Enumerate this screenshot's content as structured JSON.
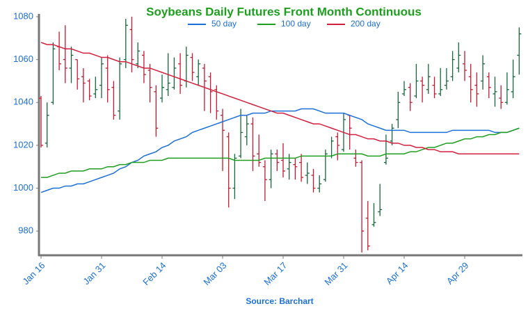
{
  "chart_data": {
    "type": "ohlc",
    "title": "Soybeans Daily Futures Front Month Continuous",
    "source": "Source: Barchart",
    "categories": [
      "Jan 16",
      null,
      null,
      null,
      null,
      null,
      null,
      null,
      null,
      null,
      "Jan 31",
      null,
      null,
      null,
      null,
      null,
      null,
      null,
      null,
      null,
      "Feb 14",
      null,
      null,
      null,
      null,
      null,
      null,
      null,
      null,
      null,
      "Mar 03",
      null,
      null,
      null,
      null,
      null,
      null,
      null,
      null,
      null,
      "Mar 17",
      null,
      null,
      null,
      null,
      null,
      null,
      null,
      null,
      null,
      "Mar 31",
      null,
      null,
      null,
      null,
      null,
      null,
      null,
      null,
      null,
      "Apr 14",
      null,
      null,
      null,
      null,
      null,
      null,
      null,
      null,
      null,
      "Apr 29",
      null,
      null,
      null,
      null,
      null,
      null,
      null,
      null,
      null
    ],
    "ohlc": {
      "up_color": "#17653a",
      "down_color": "#c41a30",
      "open": [
        1042,
        1021,
        1040,
        1066,
        1060,
        1056,
        1060,
        1052,
        1050,
        1044,
        1048,
        1056,
        1047,
        1036,
        1060,
        1074,
        1058,
        1062,
        1055,
        1045,
        1042,
        1046,
        1047,
        1058,
        1050,
        1061,
        1052,
        1056,
        1052,
        1046,
        1034,
        1024,
        1000,
        1015,
        1024,
        1030,
        1016,
        1010,
        1004,
        1016,
        1013,
        1009,
        1011,
        1012,
        1006,
        1006,
        1000,
        1004,
        1015,
        1024,
        1018,
        1034,
        1014,
        1012,
        986,
        983,
        989,
        1012,
        1022,
        1032,
        1044,
        1047,
        1043,
        1050,
        1046,
        1048,
        1044,
        1048,
        1052,
        1056,
        1058,
        1052,
        1048,
        1050,
        1052,
        1044,
        1042,
        1040,
        1045,
        1062
      ],
      "high": [
        1043,
        1040,
        1068,
        1073,
        1076,
        1066,
        1060,
        1056,
        1051,
        1052,
        1061,
        1062,
        1050,
        1061,
        1079,
        1080,
        1068,
        1064,
        1058,
        1048,
        1053,
        1063,
        1061,
        1063,
        1066,
        1063,
        1060,
        1058,
        1054,
        1048,
        1037,
        1026,
        1016,
        1037,
        1034,
        1033,
        1025,
        1013,
        1018,
        1018,
        1021,
        1016,
        1014,
        1016,
        1012,
        1009,
        1006,
        1018,
        1024,
        1026,
        1035,
        1034,
        1018,
        1013,
        994,
        993,
        1002,
        1025,
        1030,
        1045,
        1050,
        1049,
        1058,
        1052,
        1058,
        1052,
        1056,
        1056,
        1064,
        1068,
        1064,
        1058,
        1054,
        1062,
        1054,
        1052,
        1048,
        1054,
        1060,
        1075
      ],
      "low": [
        1019,
        1019,
        1039,
        1055,
        1049,
        1049,
        1046,
        1040,
        1041,
        1042,
        1042,
        1040,
        1032,
        1032,
        1056,
        1054,
        1056,
        1049,
        1040,
        1024,
        1040,
        1043,
        1046,
        1044,
        1047,
        1050,
        1048,
        1036,
        1035,
        1032,
        1008,
        991,
        995,
        1014,
        1020,
        1008,
        1010,
        994,
        1000,
        1008,
        1005,
        1004,
        1004,
        1003,
        1002,
        998,
        998,
        1003,
        1014,
        1013,
        1017,
        1018,
        1010,
        970,
        971,
        982,
        987,
        1011,
        1020,
        1028,
        1043,
        1036,
        1042,
        1040,
        1044,
        1042,
        1043,
        1046,
        1050,
        1054,
        1050,
        1040,
        1038,
        1046,
        1042,
        1038,
        1037,
        1039,
        1042,
        1053
      ],
      "close": [
        1020,
        1034,
        1065,
        1058,
        1056,
        1062,
        1051,
        1049,
        1043,
        1046,
        1058,
        1046,
        1034,
        1058,
        1076,
        1060,
        1064,
        1053,
        1047,
        1028,
        1047,
        1049,
        1056,
        1048,
        1062,
        1054,
        1058,
        1050,
        1045,
        1036,
        1027,
        1000,
        1014,
        1026,
        1030,
        1015,
        1012,
        1004,
        1016,
        1012,
        1008,
        1012,
        1010,
        1005,
        1007,
        1000,
        1002,
        1016,
        1022,
        1020,
        1032,
        1028,
        1012,
        980,
        973,
        984,
        990,
        1014,
        1028,
        1040,
        1046,
        1040,
        1050,
        1048,
        1052,
        1044,
        1046,
        1050,
        1060,
        1062,
        1055,
        1046,
        1044,
        1058,
        1047,
        1045,
        1040,
        1046,
        1052,
        1072
      ]
    },
    "series": [
      {
        "name": "50 day",
        "color": "#1a6fd8",
        "values": [
          998,
          999,
          1000,
          1000,
          1001,
          1001,
          1002,
          1002,
          1003,
          1004,
          1005,
          1006,
          1007,
          1009,
          1010,
          1012,
          1013,
          1015,
          1016,
          1017,
          1019,
          1020,
          1022,
          1023,
          1024,
          1026,
          1027,
          1028,
          1029,
          1030,
          1031,
          1032,
          1033,
          1034,
          1034,
          1035,
          1035,
          1035,
          1036,
          1036,
          1036,
          1036,
          1036,
          1037,
          1037,
          1037,
          1036,
          1035,
          1035,
          1035,
          1035,
          1034,
          1033,
          1032,
          1030,
          1029,
          1028,
          1027,
          1027,
          1027,
          1027,
          1026,
          1026,
          1026,
          1026,
          1026,
          1026,
          1026,
          1027,
          1027,
          1027,
          1027,
          1027,
          1027,
          1027,
          1026,
          1026,
          1026,
          1027,
          1028
        ]
      },
      {
        "name": "100 day",
        "color": "#1e9e1e",
        "values": [
          1005,
          1005,
          1006,
          1007,
          1007,
          1008,
          1008,
          1008,
          1009,
          1009,
          1009,
          1010,
          1010,
          1011,
          1011,
          1012,
          1012,
          1012,
          1013,
          1013,
          1013,
          1014,
          1014,
          1014,
          1014,
          1014,
          1014,
          1014,
          1014,
          1014,
          1014,
          1014,
          1013,
          1013,
          1013,
          1013,
          1013,
          1014,
          1014,
          1014,
          1014,
          1014,
          1014,
          1015,
          1015,
          1015,
          1015,
          1015,
          1015,
          1016,
          1016,
          1016,
          1016,
          1016,
          1015,
          1015,
          1015,
          1016,
          1016,
          1016,
          1016,
          1017,
          1017,
          1018,
          1019,
          1019,
          1020,
          1021,
          1021,
          1022,
          1023,
          1023,
          1024,
          1024,
          1025,
          1025,
          1026,
          1026,
          1027,
          1028
        ]
      },
      {
        "name": "200 day",
        "color": "#d21f3c",
        "values": [
          1068,
          1067,
          1067,
          1066,
          1065,
          1065,
          1064,
          1063,
          1063,
          1062,
          1061,
          1061,
          1060,
          1059,
          1059,
          1058,
          1057,
          1056,
          1056,
          1055,
          1054,
          1053,
          1052,
          1051,
          1050,
          1049,
          1048,
          1047,
          1046,
          1045,
          1044,
          1043,
          1042,
          1041,
          1040,
          1039,
          1038,
          1037,
          1036,
          1035,
          1035,
          1034,
          1033,
          1032,
          1031,
          1030,
          1030,
          1029,
          1028,
          1027,
          1026,
          1025,
          1025,
          1024,
          1023,
          1023,
          1022,
          1022,
          1021,
          1021,
          1020,
          1020,
          1019,
          1019,
          1018,
          1018,
          1017,
          1017,
          1017,
          1016,
          1016,
          1016,
          1016,
          1016,
          1016,
          1016,
          1016,
          1016,
          1016,
          1016
        ]
      }
    ],
    "ylim": [
      968.7,
      1081.3
    ],
    "yticks": [
      980,
      1000,
      1020,
      1040,
      1060,
      1080
    ]
  }
}
